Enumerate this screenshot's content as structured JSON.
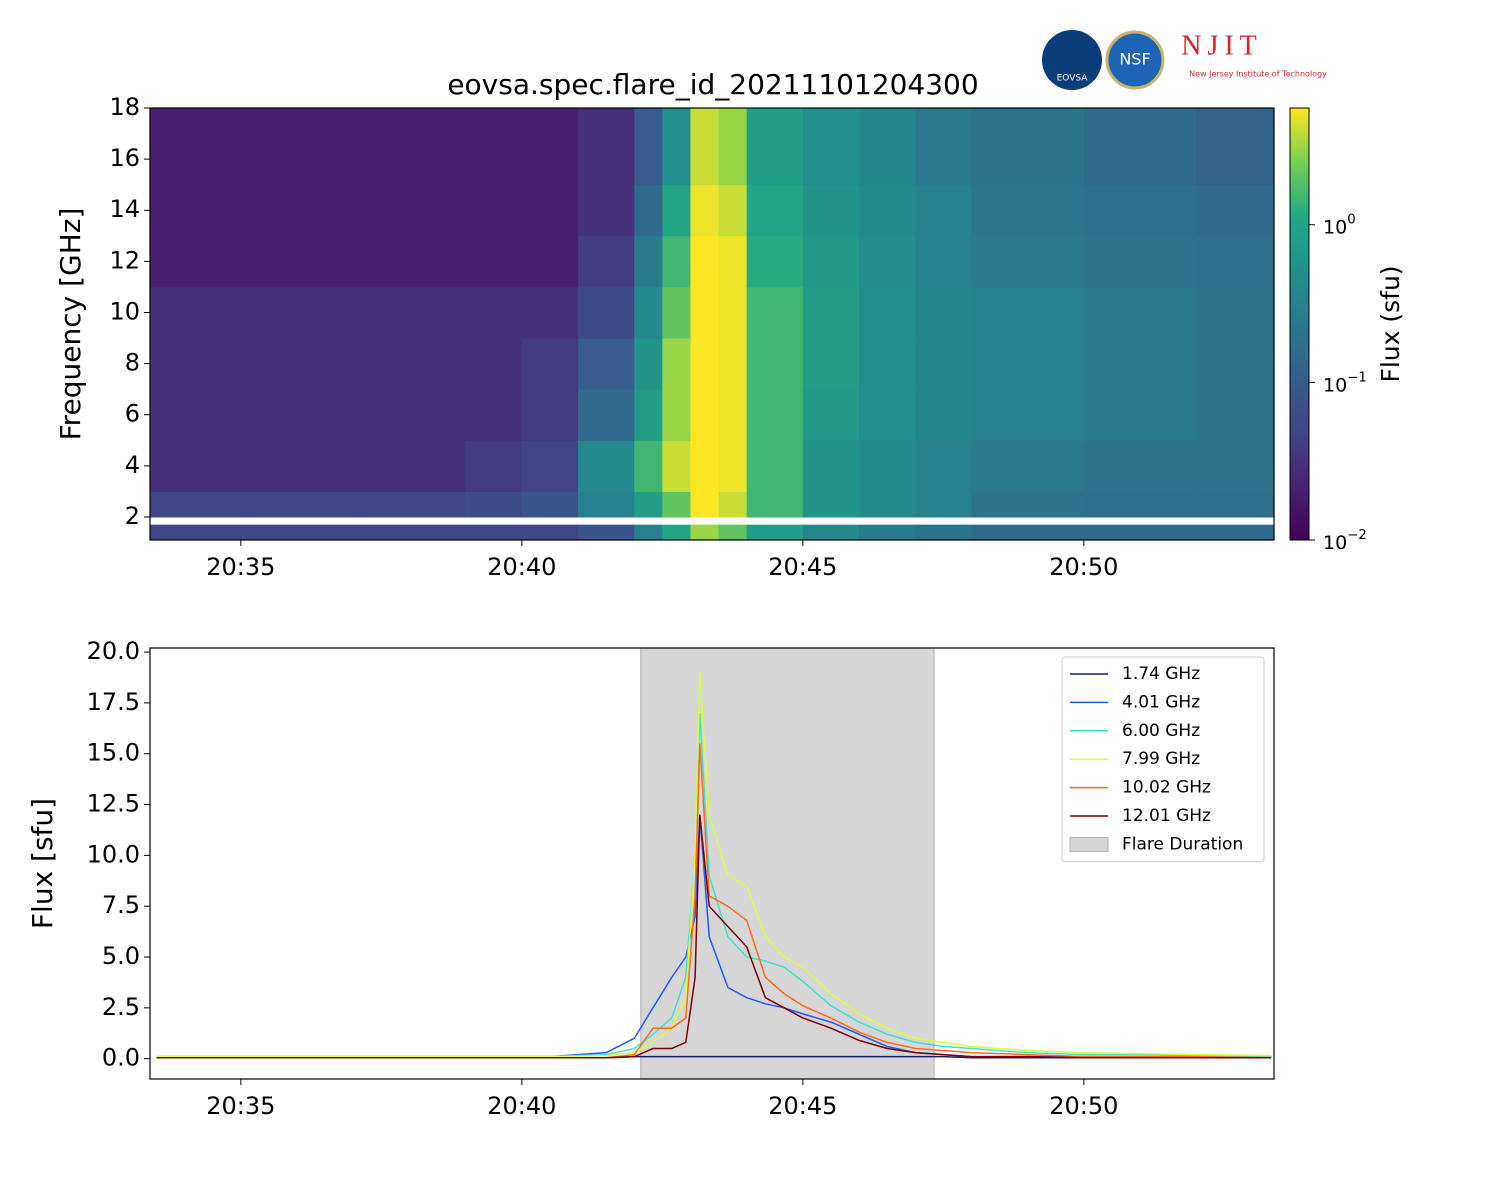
{
  "logos": {
    "eovsa": "EOVSA",
    "nsf": "NSF",
    "njit": "NJIT",
    "njit_name": "New Jersey Institute of Technology"
  },
  "chart_data": [
    {
      "type": "heatmap",
      "title": "eovsa.spec.flare_id_20211101204300",
      "ylabel": "Frequency [GHz]",
      "colorbar_label": "Flux  (sfu)",
      "colormap": "viridis",
      "log_color": true,
      "clim": [
        0.01,
        5.5
      ],
      "cticks": [
        {
          "value": 0.01,
          "label": "10^-2"
        },
        {
          "value": 0.1,
          "label": "10^-1"
        },
        {
          "value": 1,
          "label": "10^0"
        }
      ],
      "xlim": [
        "20:33:23",
        "20:53:23"
      ],
      "xticks": [
        "20:35",
        "20:40",
        "20:45",
        "20:50"
      ],
      "ylim": [
        1.1,
        18
      ],
      "yticks": [
        2,
        4,
        6,
        8,
        10,
        12,
        14,
        16,
        18
      ],
      "x_edges": [
        "20:33:23",
        "20:35",
        "20:37",
        "20:39",
        "20:40",
        "20:41",
        "20:42",
        "20:42:30",
        "20:43",
        "20:43:30",
        "20:44",
        "20:45",
        "20:46",
        "20:47",
        "20:48",
        "20:50",
        "20:52",
        "20:53:23"
      ],
      "y_edges": [
        1.1,
        1.7,
        2.0,
        3,
        5,
        7,
        9,
        11,
        13,
        15,
        18
      ],
      "values": [
        [
          0.05,
          0.05,
          0.05,
          0.05,
          0.05,
          0.08,
          0.3,
          1.0,
          3,
          2,
          0.8,
          0.4,
          0.25,
          0.2,
          0.15,
          0.15,
          0.15
        ],
        [
          null,
          null,
          null,
          null,
          null,
          null,
          null,
          null,
          null,
          null,
          null,
          null,
          null,
          null,
          null,
          null,
          null
        ],
        [
          0.05,
          0.05,
          0.05,
          0.06,
          0.08,
          0.3,
          0.8,
          2,
          6,
          4,
          1.5,
          0.6,
          0.4,
          0.3,
          0.2,
          0.18,
          0.18
        ],
        [
          0.03,
          0.03,
          0.03,
          0.04,
          0.05,
          0.4,
          1.5,
          4,
          6,
          5,
          1.5,
          0.6,
          0.4,
          0.3,
          0.25,
          0.2,
          0.2
        ],
        [
          0.03,
          0.03,
          0.03,
          0.03,
          0.04,
          0.15,
          0.8,
          3,
          6,
          5,
          1.5,
          0.7,
          0.5,
          0.35,
          0.3,
          0.25,
          0.2
        ],
        [
          0.03,
          0.03,
          0.03,
          0.03,
          0.04,
          0.1,
          0.6,
          3,
          6,
          5,
          1.5,
          0.8,
          0.5,
          0.35,
          0.3,
          0.25,
          0.2
        ],
        [
          0.03,
          0.03,
          0.03,
          0.03,
          0.03,
          0.06,
          0.4,
          2,
          6,
          5,
          1.5,
          0.8,
          0.5,
          0.35,
          0.3,
          0.25,
          0.2
        ],
        [
          0.02,
          0.02,
          0.02,
          0.02,
          0.02,
          0.04,
          0.25,
          1.5,
          6,
          5,
          1.2,
          0.7,
          0.45,
          0.3,
          0.25,
          0.2,
          0.18
        ],
        [
          0.02,
          0.02,
          0.02,
          0.02,
          0.02,
          0.03,
          0.15,
          1,
          5,
          4,
          1,
          0.6,
          0.4,
          0.3,
          0.22,
          0.18,
          0.15
        ],
        [
          0.02,
          0.02,
          0.02,
          0.02,
          0.02,
          0.03,
          0.1,
          0.5,
          4,
          3,
          0.8,
          0.5,
          0.35,
          0.25,
          0.2,
          0.15,
          0.12
        ]
      ]
    },
    {
      "type": "line",
      "ylabel": "Flux [sfu]",
      "xlim": [
        "20:33:23",
        "20:53:23"
      ],
      "xticks": [
        "20:35",
        "20:40",
        "20:45",
        "20:50"
      ],
      "ylim": [
        -1,
        20.2
      ],
      "yticks": [
        {
          "value": 0,
          "label": "0.0"
        },
        2.5,
        {
          "value": 5,
          "label": "5.0"
        },
        7.5,
        {
          "value": 10,
          "label": "10.0"
        },
        12.5,
        {
          "value": 15,
          "label": "15.0"
        },
        17.5,
        {
          "value": 20,
          "label": "20.0"
        }
      ],
      "span": {
        "label": "Flare Duration",
        "start": "20:42:07",
        "end": "20:47:20",
        "color": "#d6d6d6"
      },
      "legend": "upper right",
      "x": [
        "20:33:30",
        "20:35",
        "20:37",
        "20:39",
        "20:40:30",
        "20:41:30",
        "20:42:00",
        "20:42:20",
        "20:42:40",
        "20:42:55",
        "20:43:05",
        "20:43:10",
        "20:43:20",
        "20:43:40",
        "20:44:00",
        "20:44:20",
        "20:44:40",
        "20:45:00",
        "20:45:30",
        "20:46:00",
        "20:46:30",
        "20:47:00",
        "20:47:30",
        "20:48:00",
        "20:49:00",
        "20:50:00",
        "20:51:00",
        "20:52:00",
        "20:53:20"
      ],
      "series": [
        {
          "name": "1.74 GHz",
          "color": "#1a1a7a",
          "values": [
            0.05,
            0.05,
            0.05,
            0.05,
            0.05,
            0.05,
            0.1,
            0.1,
            0.1,
            0.1,
            0.1,
            0.1,
            0.1,
            0.1,
            0.1,
            0.1,
            0.1,
            0.1,
            0.1,
            0.1,
            0.1,
            0.1,
            0.1,
            0.05,
            0.05,
            0.05,
            0.05,
            0.05,
            0.05
          ]
        },
        {
          "name": "4.01 GHz",
          "color": "#1f5cff",
          "values": [
            0.1,
            0.1,
            0.1,
            0.1,
            0.1,
            0.3,
            1,
            2.5,
            4,
            5,
            7,
            12,
            6,
            3.5,
            3,
            2.7,
            2.5,
            2.2,
            1.8,
            1.2,
            0.6,
            0.3,
            0.2,
            0.1,
            0.1,
            0.1,
            0.1,
            0.1,
            0.1
          ]
        },
        {
          "name": "6.00 GHz",
          "color": "#40e0d0",
          "values": [
            0.1,
            0.1,
            0.1,
            0.1,
            0.1,
            0.2,
            0.5,
            1.2,
            2,
            4,
            10,
            17,
            9,
            6,
            5,
            4.8,
            4.5,
            3.8,
            2.6,
            1.8,
            1.2,
            0.8,
            0.6,
            0.5,
            0.3,
            0.2,
            0.2,
            0.15,
            0.1
          ]
        },
        {
          "name": "7.99 GHz",
          "color": "#d4ff3c",
          "values": [
            0.1,
            0.1,
            0.1,
            0.1,
            0.1,
            0.15,
            0.3,
            0.8,
            1.5,
            3,
            10,
            19,
            12,
            9,
            8.5,
            6,
            5,
            4.5,
            3.2,
            2.2,
            1.5,
            1,
            0.8,
            0.6,
            0.4,
            0.3,
            0.25,
            0.2,
            0.15
          ]
        },
        {
          "name": "10.02 GHz",
          "color": "#ff6a1a",
          "values": [
            0.05,
            0.05,
            0.05,
            0.05,
            0.05,
            0.05,
            0.2,
            1.5,
            1.5,
            2,
            8,
            15.5,
            8,
            7.5,
            6.8,
            4,
            3.2,
            2.6,
            2,
            1.3,
            0.8,
            0.5,
            0.4,
            0.3,
            0.2,
            0.1,
            0.1,
            0.1,
            0.05
          ]
        },
        {
          "name": "12.01 GHz",
          "color": "#7f0000",
          "values": [
            0.05,
            0.05,
            0.05,
            0.05,
            0.05,
            0.05,
            0.1,
            0.5,
            0.5,
            0.8,
            4,
            12,
            7.5,
            6.5,
            5.5,
            3,
            2.5,
            2,
            1.5,
            0.9,
            0.5,
            0.3,
            0.2,
            0.1,
            0.1,
            0.05,
            0.05,
            0.05,
            0.05
          ]
        }
      ]
    }
  ]
}
